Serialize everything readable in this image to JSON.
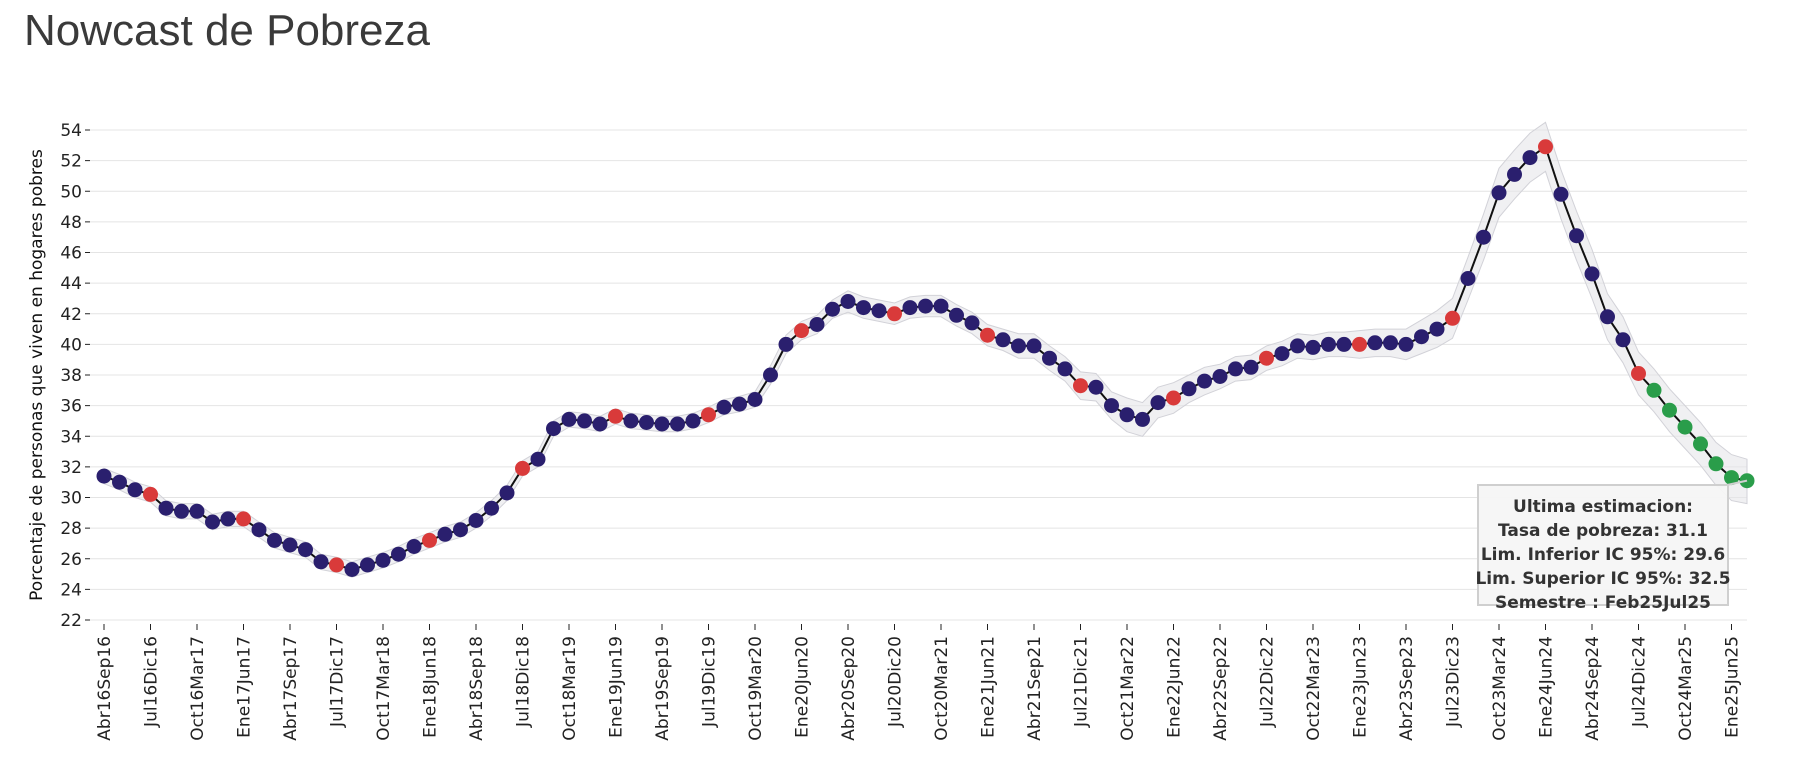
{
  "page": {
    "title": "Nowcast de Pobreza"
  },
  "colors": {
    "point_default": "#2a1f6e",
    "point_red": "#d93a3a",
    "point_green": "#2a9d4a",
    "line": "#111111",
    "band": "#e6e6ea",
    "grid": "#e4e4e4"
  },
  "chart_data": {
    "type": "line",
    "title": "Nowcast de Pobreza",
    "xlabel": "",
    "ylabel": "Porcentaje de personas que viven en hogares pobres",
    "ylim": [
      22,
      54
    ],
    "yticks": [
      22,
      24,
      26,
      28,
      30,
      32,
      34,
      36,
      38,
      40,
      42,
      44,
      46,
      48,
      50,
      52,
      54
    ],
    "x_tick_labels": [
      "Abr16Sep16",
      "Jul16Dic16",
      "Oct16Mar17",
      "Ene17Jun17",
      "Abr17Sep17",
      "Jul17Dic17",
      "Oct17Mar18",
      "Ene18Jun18",
      "Abr18Sep18",
      "Jul18Dic18",
      "Oct18Mar19",
      "Ene19Jun19",
      "Abr19Sep19",
      "Jul19Dic19",
      "Oct19Mar20",
      "Ene20Jun20",
      "Abr20Sep20",
      "Jul20Dic20",
      "Oct20Mar21",
      "Ene21Jun21",
      "Abr21Sep21",
      "Jul21Dic21",
      "Oct21Mar22",
      "Ene22Jun22",
      "Abr22Sep22",
      "Jul22Dic22",
      "Oct22Mar23",
      "Ene23Jun23",
      "Abr23Sep23",
      "Jul23Dic23",
      "Oct23Mar24",
      "Ene24Jun24",
      "Abr24Sep24",
      "Jul24Dic24",
      "Oct24Mar25",
      "Ene25Jun25"
    ],
    "tick_step": 3,
    "grid": true,
    "values": [
      31.4,
      31.0,
      30.5,
      30.2,
      29.3,
      29.1,
      29.1,
      28.4,
      28.6,
      28.6,
      27.9,
      27.2,
      26.9,
      26.6,
      25.8,
      25.6,
      25.3,
      25.6,
      25.9,
      26.3,
      26.8,
      27.2,
      27.6,
      27.9,
      28.5,
      29.3,
      30.3,
      31.9,
      32.5,
      34.5,
      35.1,
      35.0,
      34.8,
      35.3,
      35.0,
      34.9,
      34.8,
      34.8,
      35.0,
      35.4,
      35.9,
      36.1,
      36.4,
      38.0,
      40.0,
      40.9,
      41.3,
      42.3,
      42.8,
      42.4,
      42.2,
      42.0,
      42.4,
      42.5,
      42.5,
      41.9,
      41.4,
      40.6,
      40.3,
      39.9,
      39.9,
      39.1,
      38.4,
      37.3,
      37.2,
      36.0,
      35.4,
      35.1,
      36.2,
      36.5,
      37.1,
      37.6,
      37.9,
      38.4,
      38.5,
      39.1,
      39.4,
      39.9,
      39.8,
      40.0,
      40.0,
      40.0,
      40.1,
      40.1,
      40.0,
      40.5,
      41.0,
      41.7,
      44.3,
      47.0,
      49.9,
      51.1,
      52.2,
      52.9,
      49.8,
      47.1,
      44.6,
      41.8,
      40.3,
      38.1,
      37.0,
      35.7,
      34.6,
      33.5,
      32.2,
      31.3,
      31.1
    ],
    "lower": [
      30.9,
      30.5,
      30.0,
      29.7,
      28.8,
      28.6,
      28.6,
      27.9,
      28.1,
      28.1,
      27.4,
      26.7,
      26.4,
      26.1,
      25.3,
      25.1,
      24.8,
      25.1,
      25.4,
      25.8,
      26.3,
      26.7,
      27.1,
      27.4,
      28.0,
      28.8,
      29.8,
      31.4,
      32.0,
      34.0,
      34.6,
      34.5,
      34.3,
      34.8,
      34.5,
      34.4,
      34.3,
      34.3,
      34.5,
      34.9,
      35.4,
      35.6,
      35.9,
      37.4,
      39.4,
      40.3,
      40.7,
      41.7,
      42.1,
      41.7,
      41.5,
      41.3,
      41.7,
      41.8,
      41.8,
      41.2,
      40.7,
      39.9,
      39.6,
      39.1,
      39.1,
      38.3,
      37.6,
      36.4,
      36.3,
      35.1,
      34.3,
      34.0,
      35.2,
      35.5,
      36.2,
      36.7,
      37.1,
      37.6,
      37.7,
      38.3,
      38.6,
      39.1,
      39.0,
      39.2,
      39.2,
      39.1,
      39.2,
      39.2,
      39.0,
      39.4,
      39.8,
      40.4,
      42.9,
      45.5,
      48.3,
      49.5,
      50.6,
      51.3,
      48.2,
      45.5,
      43.0,
      40.3,
      38.8,
      36.7,
      35.6,
      34.3,
      33.2,
      32.1,
      30.8,
      29.8,
      29.6
    ],
    "upper": [
      31.9,
      31.5,
      31.0,
      30.7,
      29.8,
      29.6,
      29.6,
      28.9,
      29.1,
      29.1,
      28.4,
      27.7,
      27.4,
      27.1,
      26.3,
      26.1,
      25.8,
      26.1,
      26.4,
      26.8,
      27.3,
      27.7,
      28.1,
      28.4,
      29.0,
      29.8,
      30.8,
      32.4,
      33.0,
      35.0,
      35.6,
      35.5,
      35.3,
      35.8,
      35.5,
      35.4,
      35.3,
      35.3,
      35.5,
      35.9,
      36.4,
      36.6,
      36.9,
      38.6,
      40.6,
      41.5,
      41.9,
      42.9,
      43.5,
      43.1,
      42.9,
      42.7,
      43.1,
      43.2,
      43.2,
      42.6,
      42.1,
      41.3,
      41.0,
      40.7,
      40.7,
      39.9,
      39.2,
      38.2,
      38.1,
      36.9,
      36.5,
      36.2,
      37.2,
      37.5,
      38.0,
      38.5,
      38.7,
      39.2,
      39.3,
      39.9,
      40.2,
      40.7,
      40.6,
      40.8,
      40.8,
      40.9,
      41.0,
      41.0,
      41.0,
      41.6,
      42.2,
      43.0,
      45.7,
      48.5,
      51.5,
      52.7,
      53.8,
      54.5,
      51.4,
      48.7,
      46.2,
      43.3,
      41.8,
      39.5,
      38.4,
      37.1,
      36.0,
      34.9,
      33.6,
      32.8,
      32.5
    ],
    "red_points": [
      3,
      9,
      15,
      21,
      27,
      33,
      39,
      45,
      51,
      57,
      63,
      69,
      75,
      81,
      87,
      93,
      99
    ],
    "green_points": [
      100,
      101,
      102,
      103,
      104,
      105,
      106
    ],
    "tooltip": {
      "lines": [
        "Ultima estimacion:",
        "Tasa de pobreza:  31.1",
        "Lim. Inferior IC 95%:  29.6",
        "Lim. Superior IC 95%:  32.5",
        "Semestre : Feb25Jul25"
      ]
    }
  }
}
